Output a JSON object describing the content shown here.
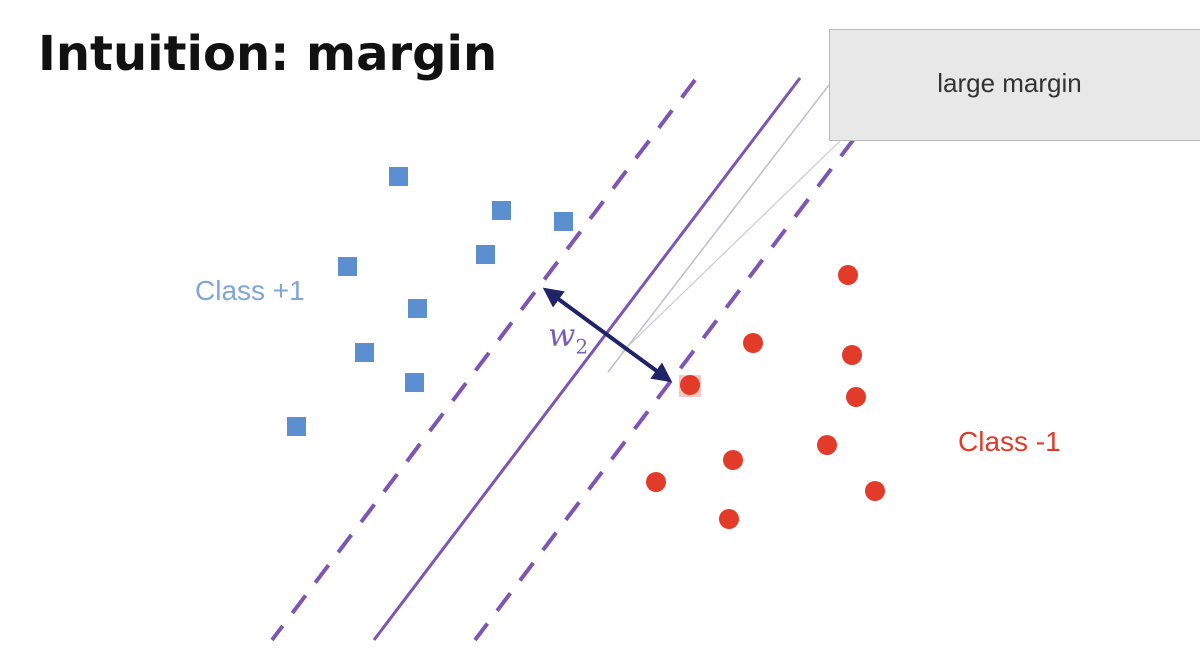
{
  "slide": {
    "title": "Intuition: margin"
  },
  "callout": {
    "text": "large margin"
  },
  "labels": {
    "class_pos": "Class +1",
    "class_neg": "Class -1",
    "weight_symbol": "w",
    "weight_subscript": "2"
  },
  "colors": {
    "class_pos": "#5b8fd0",
    "class_neg": "#e23b2a",
    "hyperplane": "#7d55b5",
    "margin_arrow": "#1f2466",
    "callout_fill": "#e8e8e8"
  }
}
